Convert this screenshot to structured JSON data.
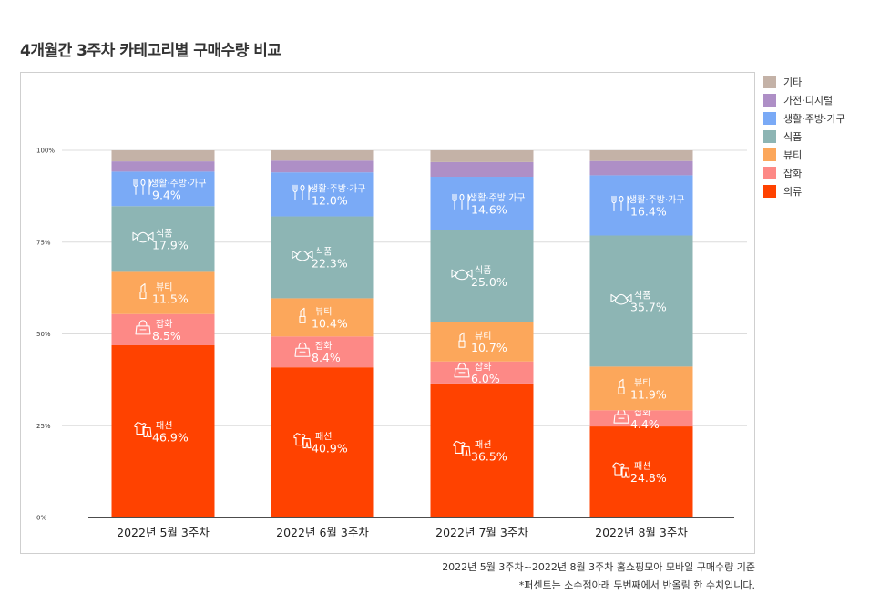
{
  "title": "4개월간 3주차 카테고리별 구매수량 비교",
  "legend": [
    {
      "name": "기타",
      "color": "#c4b2a7"
    },
    {
      "name": "가전·디지털",
      "color": "#ae8fc6"
    },
    {
      "name": "생활·주방·가구",
      "color": "#7aaaf6"
    },
    {
      "name": "식품",
      "color": "#8db5b4"
    },
    {
      "name": "뷰티",
      "color": "#fca75b"
    },
    {
      "name": "잡화",
      "color": "#fd8986"
    },
    {
      "name": "의류",
      "color": "#ff4200"
    }
  ],
  "footnote": {
    "line1": "2022년 5월 3주차~2022년 8월 3주차 홈쇼핑모아 모바일 구매수량 기준",
    "line2": "*퍼센트는 소수점아래 두번째에서 반올림 한 수치입니다."
  },
  "chart_data": {
    "type": "bar",
    "stacked": true,
    "categories": [
      "2022년 5월 3주차",
      "2022년 6월 3주차",
      "2022년 7월 3주차",
      "2022년 8월 3주차"
    ],
    "y_ticks": [
      "0%",
      "25%",
      "50%",
      "75%",
      "100%"
    ],
    "ylim": [
      0,
      100
    ],
    "grid": true,
    "legend_position": "right",
    "series": [
      {
        "name": "의류",
        "label": "패션",
        "icon": "clothes-icon",
        "color": "#ff4200",
        "values": [
          46.9,
          40.9,
          36.5,
          24.8
        ],
        "labels": [
          "46.9%",
          "40.9%",
          "36.5%",
          "24.8%"
        ]
      },
      {
        "name": "잡화",
        "label": "잡화",
        "icon": "bag-icon",
        "color": "#fd8986",
        "values": [
          8.5,
          8.4,
          6.0,
          4.4
        ],
        "labels": [
          "8.5%",
          "8.4%",
          "6.0%",
          "4.4%"
        ]
      },
      {
        "name": "뷰티",
        "label": "뷰티",
        "icon": "lipstick-icon",
        "color": "#fca75b",
        "values": [
          11.5,
          10.4,
          10.7,
          11.9
        ],
        "labels": [
          "11.5%",
          "10.4%",
          "10.7%",
          "11.9%"
        ]
      },
      {
        "name": "식품",
        "label": "식품",
        "icon": "candy-icon",
        "color": "#8db5b4",
        "values": [
          17.9,
          22.3,
          25.0,
          35.7
        ],
        "labels": [
          "17.9%",
          "22.3%",
          "25.0%",
          "35.7%"
        ]
      },
      {
        "name": "생활·주방·가구",
        "label": "생활·주방·가구",
        "icon": "utensils-icon",
        "color": "#7aaaf6",
        "values": [
          9.4,
          12.0,
          14.6,
          16.4
        ],
        "labels": [
          "9.4%",
          "12.0%",
          "14.6%",
          "16.4%"
        ]
      },
      {
        "name": "가전·디지털",
        "label": "",
        "icon": "",
        "color": "#ae8fc6",
        "values": [
          2.8,
          3.2,
          4.0,
          3.9
        ],
        "labels": []
      },
      {
        "name": "기타",
        "label": "",
        "icon": "",
        "color": "#c4b2a7",
        "values": [
          3.0,
          2.8,
          3.2,
          2.9
        ],
        "labels": []
      }
    ]
  }
}
